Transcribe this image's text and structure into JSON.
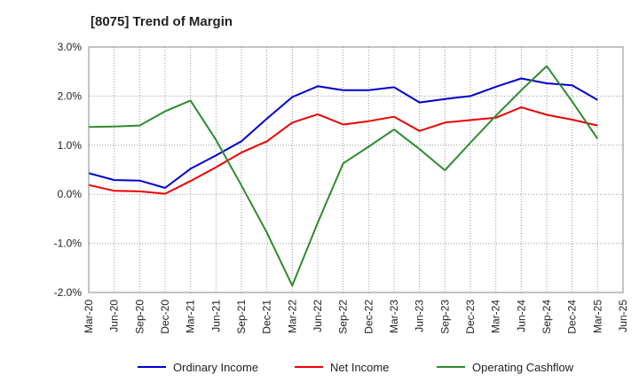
{
  "chart_data": {
    "type": "line",
    "title": "[8075]  Trend of Margin",
    "xlabel": "",
    "ylabel": "",
    "x": [
      "Mar-20",
      "Jun-20",
      "Sep-20",
      "Dec-20",
      "Mar-21",
      "Jun-21",
      "Sep-21",
      "Dec-21",
      "Mar-22",
      "Jun-22",
      "Sep-22",
      "Dec-22",
      "Mar-23",
      "Jun-23",
      "Sep-23",
      "Dec-23",
      "Mar-24",
      "Jun-24",
      "Sep-24",
      "Dec-24",
      "Mar-25",
      "Jun-25"
    ],
    "ylim": [
      -2.0,
      3.0
    ],
    "yticks": [
      -2.0,
      -1.0,
      0.0,
      1.0,
      2.0,
      3.0
    ],
    "ytick_labels": [
      "-2.0%",
      "-1.0%",
      "0.0%",
      "1.0%",
      "2.0%",
      "3.0%"
    ],
    "grid": true,
    "legend_position": "bottom",
    "series": [
      {
        "name": "Ordinary Income",
        "color": "#0000cc",
        "values": [
          0.43,
          0.29,
          0.28,
          0.13,
          0.52,
          0.79,
          1.08,
          1.54,
          1.98,
          2.2,
          2.12,
          2.12,
          2.18,
          1.87,
          1.94,
          2.0,
          2.19,
          2.36,
          2.26,
          2.22,
          1.92,
          null
        ]
      },
      {
        "name": "Net Income",
        "color": "#ee0000",
        "values": [
          0.19,
          0.07,
          0.06,
          0.01,
          0.27,
          0.55,
          0.85,
          1.08,
          1.46,
          1.63,
          1.42,
          1.49,
          1.58,
          1.29,
          1.46,
          1.51,
          1.56,
          1.77,
          1.62,
          1.52,
          1.4,
          null
        ]
      },
      {
        "name": "Operating Cashflow",
        "color": "#2e8b2e",
        "values": [
          1.37,
          1.38,
          1.4,
          1.69,
          1.91,
          1.11,
          0.18,
          -0.78,
          -1.86,
          -0.58,
          0.63,
          0.97,
          1.32,
          0.92,
          0.49,
          1.05,
          1.6,
          2.12,
          2.61,
          1.89,
          1.13,
          null
        ]
      }
    ]
  }
}
